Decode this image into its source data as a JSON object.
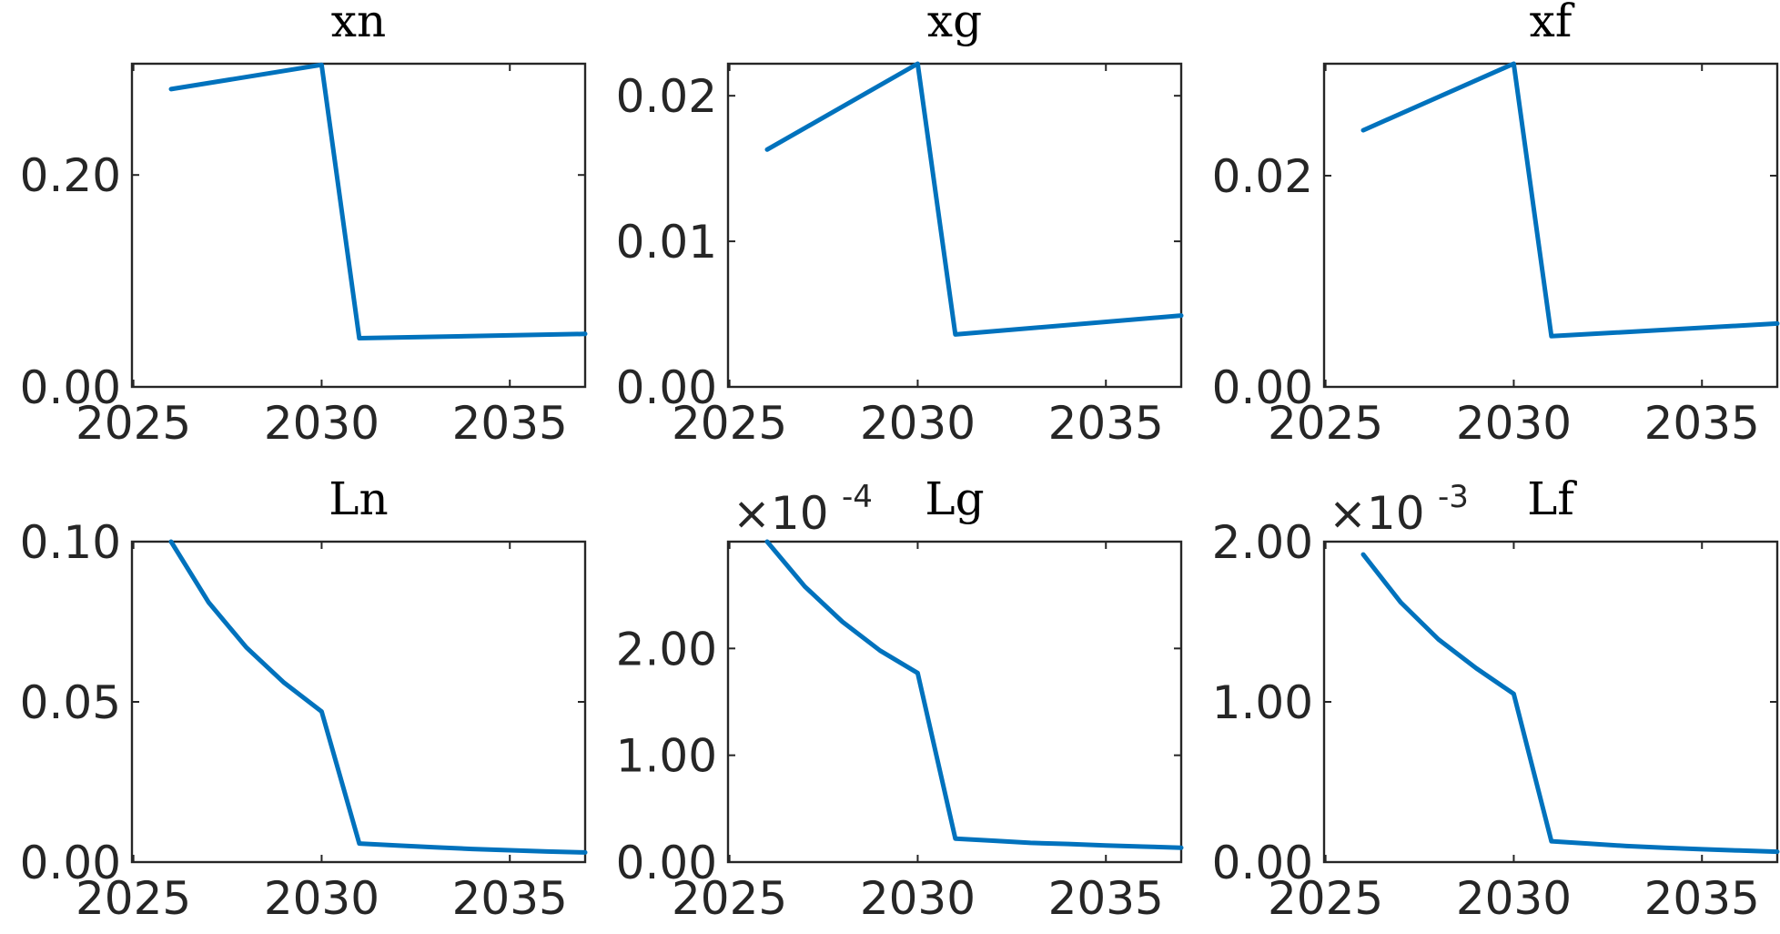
{
  "figure": {
    "series_color": "#0072BD"
  },
  "chart_data": [
    {
      "type": "line",
      "title": "xn",
      "xlim": [
        2026,
        2037
      ],
      "xticks": [
        2025,
        2030,
        2035
      ],
      "ylim": [
        0,
        0.305
      ],
      "yticks": [
        0,
        0.2
      ],
      "yticklabels": [
        "0.00",
        "0.20"
      ],
      "exponent": null,
      "x": [
        2026,
        2030,
        2031,
        2037
      ],
      "y": [
        0.281,
        0.304,
        0.046,
        0.05
      ]
    },
    {
      "type": "line",
      "title": "xg",
      "xlim": [
        2026,
        2037
      ],
      "xticks": [
        2025,
        2030,
        2035
      ],
      "ylim": [
        0,
        0.0222
      ],
      "yticks": [
        0,
        0.01,
        0.02
      ],
      "yticklabels": [
        "0.00",
        "0.01",
        "0.02"
      ],
      "exponent": null,
      "x": [
        2026,
        2030,
        2031,
        2037
      ],
      "y": [
        0.0163,
        0.0222,
        0.0036,
        0.0049
      ]
    },
    {
      "type": "line",
      "title": "xf",
      "xlim": [
        2026,
        2037
      ],
      "xticks": [
        2025,
        2030,
        2035
      ],
      "ylim": [
        0,
        0.0306
      ],
      "yticks": [
        0,
        0.02
      ],
      "yticklabels": [
        "0.00",
        "0.02"
      ],
      "exponent": null,
      "x": [
        2026,
        2030,
        2031,
        2037
      ],
      "y": [
        0.0243,
        0.0306,
        0.0048,
        0.006
      ]
    },
    {
      "type": "line",
      "title": "Ln",
      "xlim": [
        2026,
        2037
      ],
      "xticks": [
        2025,
        2030,
        2035
      ],
      "ylim": [
        0,
        0.1
      ],
      "yticks": [
        0,
        0.05,
        0.1
      ],
      "yticklabels": [
        "0.00",
        "0.05",
        "0.10"
      ],
      "exponent": null,
      "x": [
        2026,
        2027,
        2028,
        2029,
        2030,
        2031,
        2032,
        2033,
        2034,
        2035,
        2036,
        2037
      ],
      "y": [
        0.1,
        0.081,
        0.067,
        0.056,
        0.047,
        0.0058,
        0.0052,
        0.0046,
        0.0041,
        0.0037,
        0.0033,
        0.003
      ]
    },
    {
      "type": "line",
      "title": "Lg",
      "xlim": [
        2026,
        2037
      ],
      "xticks": [
        2025,
        2030,
        2035
      ],
      "ylim": [
        0,
        3
      ],
      "yticks": [
        0,
        1,
        2
      ],
      "yticklabels": [
        "0.00",
        "1.00",
        "2.00"
      ],
      "exponent": {
        "base": "×10",
        "power": "-4"
      },
      "x": [
        2026,
        2027,
        2028,
        2029,
        2030,
        2031,
        2032,
        2033,
        2034,
        2035,
        2036,
        2037
      ],
      "y": [
        3.0,
        2.58,
        2.25,
        1.98,
        1.77,
        0.22,
        0.2,
        0.18,
        0.17,
        0.155,
        0.145,
        0.135
      ]
    },
    {
      "type": "line",
      "title": "Lf",
      "xlim": [
        2026,
        2037
      ],
      "xticks": [
        2025,
        2030,
        2035
      ],
      "ylim": [
        0,
        2
      ],
      "yticks": [
        0,
        1,
        2
      ],
      "yticklabels": [
        "0.00",
        "1.00",
        "2.00"
      ],
      "exponent": {
        "base": "×10",
        "power": "-3"
      },
      "x": [
        2026,
        2027,
        2028,
        2029,
        2030,
        2031,
        2032,
        2033,
        2034,
        2035,
        2036,
        2037
      ],
      "y": [
        1.92,
        1.62,
        1.39,
        1.21,
        1.05,
        0.13,
        0.115,
        0.1,
        0.09,
        0.08,
        0.072,
        0.065
      ]
    }
  ]
}
